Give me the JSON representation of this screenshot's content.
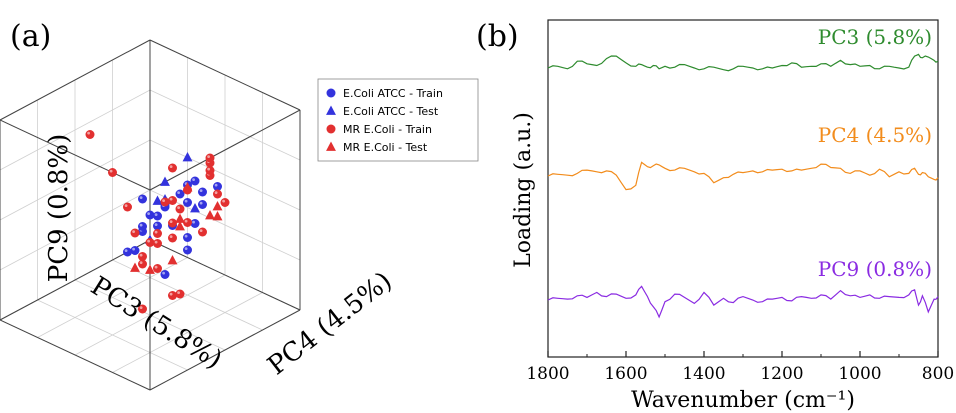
{
  "panel_a_label": "(a)",
  "panel_b_label": "(b)",
  "chart_data": [
    {
      "type": "scatter",
      "panel": "(a)",
      "projection": "3d",
      "axes": {
        "x": "PC3 (5.8%)",
        "y": "PC4 (4.5%)",
        "z": "PC9 (0.8%)"
      },
      "grid": true,
      "legend_position": "top-right",
      "series": [
        {
          "name": "E.Coli ATCC - Train",
          "marker": "circle",
          "color": "#3333dd",
          "points": [
            [
              -0.5,
              0.2,
              0.1
            ],
            [
              -0.4,
              0.1,
              0.0
            ],
            [
              -0.3,
              0.3,
              -0.1
            ],
            [
              -0.2,
              0.2,
              0.2
            ],
            [
              -0.1,
              0.1,
              0.1
            ],
            [
              0.0,
              0.3,
              0.0
            ],
            [
              0.1,
              0.2,
              0.1
            ],
            [
              0.2,
              0.4,
              0.3
            ],
            [
              0.3,
              0.1,
              -0.2
            ],
            [
              -0.6,
              0.0,
              0.1
            ],
            [
              -0.2,
              0.5,
              0.2
            ],
            [
              0.0,
              0.0,
              0.0
            ],
            [
              0.1,
              0.6,
              -0.1
            ],
            [
              0.4,
              0.3,
              0.1
            ],
            [
              -0.3,
              -0.2,
              -0.3
            ],
            [
              0.9,
              0.6,
              0.2
            ],
            [
              0.2,
              0.7,
              0.1
            ],
            [
              -0.1,
              0.4,
              0.4
            ],
            [
              0.3,
              0.5,
              -0.3
            ],
            [
              -0.4,
              0.5,
              0.3
            ],
            [
              0.2,
              0.1,
              0.0
            ],
            [
              0.1,
              0.0,
              0.2
            ]
          ]
        },
        {
          "name": "E.Coli ATCC - Test",
          "marker": "triangle",
          "color": "#3333dd",
          "points": [
            [
              -0.2,
              0.3,
              0.6
            ],
            [
              0.0,
              0.2,
              0.4
            ],
            [
              0.1,
              0.3,
              0.3
            ],
            [
              0.3,
              0.4,
              0.4
            ],
            [
              -0.1,
              0.5,
              0.2
            ],
            [
              0.2,
              0.2,
              -0.1
            ]
          ]
        },
        {
          "name": "MR E.Coli - Train",
          "marker": "circle",
          "color": "#e23030",
          "points": [
            [
              0.5,
              -0.3,
              0.9
            ],
            [
              0.6,
              0.1,
              0.7
            ],
            [
              -0.5,
              0.3,
              0.3
            ],
            [
              -0.4,
              0.4,
              0.5
            ],
            [
              -0.3,
              0.2,
              0.2
            ],
            [
              -0.2,
              0.1,
              0.1
            ],
            [
              0.0,
              0.2,
              0.2
            ],
            [
              0.1,
              0.4,
              0.1
            ],
            [
              0.2,
              0.3,
              -0.1
            ],
            [
              -0.6,
              0.2,
              0.4
            ],
            [
              -0.5,
              0.5,
              0.1
            ],
            [
              -0.1,
              0.6,
              0.0
            ],
            [
              0.3,
              0.6,
              0.1
            ],
            [
              0.4,
              0.5,
              -0.2
            ],
            [
              0.2,
              0.0,
              -0.1
            ],
            [
              -0.2,
              -0.1,
              -0.3
            ],
            [
              0.3,
              0.2,
              -0.3
            ],
            [
              0.5,
              0.4,
              -0.6
            ],
            [
              0.4,
              0.7,
              -0.4
            ],
            [
              -0.7,
              0.1,
              0.2
            ],
            [
              -0.3,
              0.6,
              0.3
            ],
            [
              0.1,
              0.1,
              -0.2
            ],
            [
              0.0,
              0.5,
              0.1
            ],
            [
              -0.4,
              0.0,
              -0.1
            ],
            [
              0.6,
              0.5,
              0.0
            ],
            [
              0.2,
              0.6,
              -0.5
            ],
            [
              -0.1,
              0.2,
              0.5
            ],
            [
              0.3,
              0.0,
              0.2
            ]
          ]
        },
        {
          "name": "MR E.Coli - Test",
          "marker": "triangle",
          "color": "#e23030",
          "points": [
            [
              -0.8,
              0.1,
              -0.2
            ],
            [
              -0.6,
              -0.1,
              0.0
            ],
            [
              -0.5,
              0.3,
              -0.1
            ],
            [
              -0.3,
              0.1,
              -0.2
            ],
            [
              0.0,
              0.4,
              0.1
            ],
            [
              0.2,
              0.5,
              -0.2
            ],
            [
              0.6,
              0.6,
              -0.1
            ],
            [
              0.4,
              0.2,
              -0.3
            ],
            [
              -0.4,
              0.5,
              0.0
            ]
          ]
        }
      ]
    },
    {
      "type": "line",
      "panel": "(b)",
      "xlabel": "Wavenumber (cm⁻¹)",
      "ylabel": "Loading (a.u.)",
      "xlim": [
        1800,
        800
      ],
      "x_ticks": [
        "1800",
        "1600",
        "1400",
        "1200",
        "1000",
        "800"
      ],
      "x": [
        1800,
        1775,
        1750,
        1725,
        1700,
        1675,
        1650,
        1625,
        1600,
        1575,
        1560,
        1545,
        1530,
        1515,
        1500,
        1475,
        1450,
        1425,
        1400,
        1375,
        1350,
        1325,
        1300,
        1275,
        1250,
        1225,
        1200,
        1175,
        1150,
        1125,
        1100,
        1075,
        1050,
        1025,
        1000,
        975,
        950,
        925,
        900,
        875,
        860,
        850,
        840,
        825,
        810,
        800
      ],
      "series": [
        {
          "name": "PC3 (5.8%)",
          "color": "#2e8b2e",
          "values": [
            0.0,
            0.2,
            -0.1,
            0.8,
            0.5,
            0.3,
            1.1,
            1.4,
            0.6,
            0.2,
            0.4,
            0.1,
            0.3,
            -0.1,
            0.2,
            0.1,
            0.4,
            0.0,
            -0.1,
            0.1,
            -0.2,
            -0.1,
            0.2,
            0.0,
            -0.1,
            0.0,
            0.3,
            0.6,
            0.1,
            0.2,
            0.5,
            0.2,
            0.9,
            0.4,
            0.2,
            0.3,
            -0.1,
            0.2,
            0.0,
            0.1,
            1.4,
            1.6,
            1.2,
            1.3,
            0.9,
            0.8
          ]
        },
        {
          "name": "PC4 (4.5%)",
          "color": "#f28c1c",
          "values": [
            0.0,
            0.2,
            0.1,
            0.3,
            0.7,
            0.5,
            0.6,
            0.1,
            -1.6,
            -1.1,
            1.6,
            1.1,
            1.2,
            1.3,
            0.9,
            0.7,
            0.9,
            0.5,
            0.3,
            -0.8,
            -0.2,
            0.2,
            0.4,
            0.6,
            0.5,
            0.7,
            0.8,
            0.6,
            0.7,
            0.9,
            1.4,
            1.0,
            0.9,
            0.3,
            0.6,
            0.1,
            0.8,
            -0.1,
            0.5,
            0.3,
            0.9,
            0.2,
            0.4,
            -0.1,
            -0.4,
            -0.2
          ]
        },
        {
          "name": "PC9 (0.8%)",
          "color": "#8a2be2",
          "values": [
            0.0,
            0.2,
            0.1,
            0.5,
            0.3,
            0.9,
            0.4,
            0.7,
            0.2,
            0.6,
            1.6,
            0.4,
            -0.8,
            -2.0,
            -0.2,
            0.7,
            0.3,
            -0.4,
            0.9,
            -0.6,
            0.2,
            -0.3,
            0.4,
            0.0,
            -0.2,
            0.1,
            0.3,
            -0.1,
            0.4,
            0.2,
            0.6,
            0.1,
            1.1,
            0.5,
            0.3,
            0.6,
            0.2,
            0.4,
            0.3,
            0.6,
            1.2,
            -0.6,
            0.5,
            -1.4,
            0.1,
            0.4
          ]
        }
      ]
    }
  ]
}
